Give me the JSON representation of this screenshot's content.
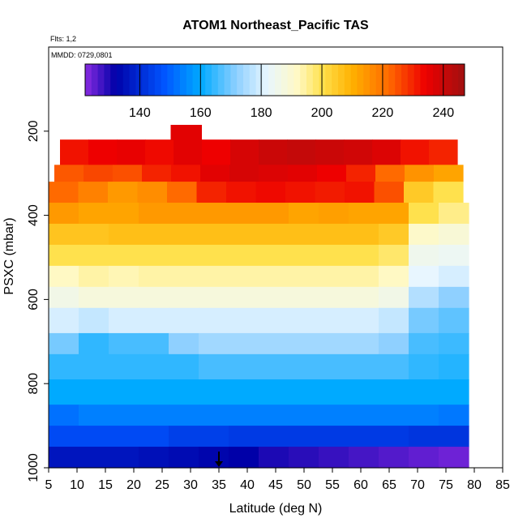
{
  "chart_data": {
    "type": "heatmap",
    "title": "ATOM1 Northeast_Pacific TAS",
    "annotations": [
      "Flts: 1,2",
      "MMDD: 0729,0801"
    ],
    "xlabel": "Latitude (deg N)",
    "ylabel": "PSXC (mbar)",
    "xlim": [
      5,
      85
    ],
    "ylim": [
      1000,
      0
    ],
    "x_ticks": [
      5,
      10,
      15,
      20,
      25,
      30,
      35,
      40,
      45,
      50,
      55,
      60,
      65,
      70,
      75,
      80,
      85
    ],
    "y_ticks": [
      200,
      400,
      600,
      800,
      1000
    ],
    "colorbar": {
      "range": [
        122,
        247
      ],
      "ticks": [
        140,
        160,
        180,
        200,
        220,
        240
      ],
      "stops": [
        {
          "value": 122,
          "color": "#8a2be2"
        },
        {
          "value": 132,
          "color": "#0000a8"
        },
        {
          "value": 148,
          "color": "#0055ff"
        },
        {
          "value": 160,
          "color": "#00aaff"
        },
        {
          "value": 172,
          "color": "#8fd0ff"
        },
        {
          "value": 182,
          "color": "#e8f6ff"
        },
        {
          "value": 192,
          "color": "#fff9c4"
        },
        {
          "value": 200,
          "color": "#ffe14d"
        },
        {
          "value": 210,
          "color": "#ffb000"
        },
        {
          "value": 222,
          "color": "#ff6a00"
        },
        {
          "value": 234,
          "color": "#ee0000"
        },
        {
          "value": 247,
          "color": "#a01010"
        }
      ]
    },
    "rows": [
      {
        "p_top": 220,
        "p_bot": 280,
        "x0": 7,
        "x1": 77,
        "values": [
          232,
          234,
          235,
          233,
          236,
          234,
          238,
          240,
          241,
          240,
          239,
          237,
          232,
          230
        ]
      },
      {
        "p_top": 280,
        "p_bot": 320,
        "x0": 6,
        "x1": 78,
        "values": [
          224,
          226,
          225,
          230,
          232,
          236,
          238,
          237,
          236,
          234,
          230,
          222,
          215,
          212
        ]
      },
      {
        "p_top": 320,
        "p_bot": 370,
        "x0": 5,
        "x1": 78,
        "values": [
          222,
          218,
          214,
          216,
          222,
          230,
          232,
          233,
          232,
          231,
          232,
          225,
          205,
          200
        ]
      },
      {
        "p_top": 370,
        "p_bot": 420,
        "x0": 5,
        "x1": 79,
        "values": [
          214,
          212,
          212,
          214,
          214,
          214,
          214,
          214,
          212,
          213,
          212,
          212,
          200,
          196
        ]
      },
      {
        "p_top": 420,
        "p_bot": 470,
        "x0": 5,
        "x1": 79,
        "values": [
          206,
          206,
          207,
          207,
          207,
          207,
          207,
          207,
          207,
          207,
          207,
          205,
          191,
          189
        ]
      },
      {
        "p_top": 470,
        "p_bot": 520,
        "x0": 5,
        "x1": 79,
        "values": [
          200,
          200,
          200,
          200,
          200,
          200,
          200,
          200,
          200,
          200,
          200,
          198,
          185,
          184
        ]
      },
      {
        "p_top": 520,
        "p_bot": 570,
        "x0": 5,
        "x1": 79,
        "values": [
          192,
          194,
          193,
          194,
          194,
          194,
          194,
          194,
          194,
          194,
          194,
          192,
          182,
          180
        ]
      },
      {
        "p_top": 570,
        "p_bot": 620,
        "x0": 5,
        "x1": 79,
        "values": [
          186,
          188,
          188,
          188,
          188,
          188,
          188,
          188,
          188,
          188,
          188,
          186,
          176,
          172
        ]
      },
      {
        "p_top": 620,
        "p_bot": 680,
        "x0": 5,
        "x1": 79,
        "values": [
          180,
          178,
          180,
          180,
          180,
          180,
          180,
          180,
          180,
          180,
          180,
          178,
          170,
          168
        ]
      },
      {
        "p_top": 680,
        "p_bot": 730,
        "x0": 5,
        "x1": 79,
        "values": [
          170,
          164,
          166,
          166,
          172,
          174,
          174,
          174,
          174,
          174,
          174,
          172,
          166,
          165
        ]
      },
      {
        "p_top": 730,
        "p_bot": 790,
        "x0": 5,
        "x1": 79,
        "values": [
          164,
          164,
          164,
          164,
          164,
          166,
          166,
          166,
          166,
          166,
          166,
          166,
          164,
          163
        ]
      },
      {
        "p_top": 790,
        "p_bot": 850,
        "x0": 5,
        "x1": 79,
        "values": [
          160,
          160,
          160,
          160,
          160,
          160,
          160,
          160,
          160,
          160,
          160,
          160,
          160,
          160
        ]
      },
      {
        "p_top": 850,
        "p_bot": 900,
        "x0": 5,
        "x1": 79,
        "values": [
          152,
          154,
          154,
          154,
          154,
          154,
          154,
          154,
          154,
          154,
          154,
          154,
          154,
          153
        ]
      },
      {
        "p_top": 900,
        "p_bot": 950,
        "x0": 5,
        "x1": 79,
        "values": [
          146,
          146,
          146,
          146,
          144,
          144,
          143,
          143,
          143,
          143,
          143,
          143,
          142,
          142
        ]
      },
      {
        "p_top": 950,
        "p_bot": 1000,
        "x0": 5,
        "x1": 79,
        "values": [
          136,
          136,
          136,
          135,
          134,
          133,
          132,
          130,
          129,
          128,
          127,
          126,
          125,
          124
        ]
      }
    ],
    "extra_blocks": [
      {
        "x0": 26.5,
        "x1": 32,
        "p_top": 185,
        "p_bot": 220,
        "value": 236
      }
    ]
  }
}
